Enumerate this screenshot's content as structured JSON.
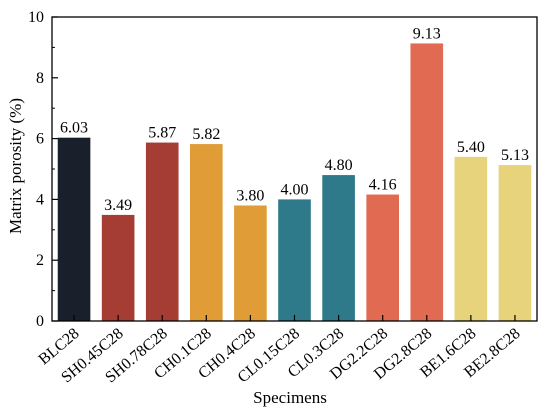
{
  "chart_data": {
    "type": "bar",
    "title": "",
    "xlabel": "Specimens",
    "ylabel": "Matrix porosity (%)",
    "ylim": [
      0,
      10
    ],
    "yticks": [
      0,
      2,
      4,
      6,
      8,
      10
    ],
    "grid": false,
    "categories": [
      "BLC28",
      "SH0.45C28",
      "SH0.78C28",
      "CH0.1C28",
      "CH0.4C28",
      "CL0.15C28",
      "CL0.3C28",
      "DG2.2C28",
      "DG2.8C28",
      "BE1.6C28",
      "BE2.8C28"
    ],
    "values": [
      6.03,
      3.49,
      5.87,
      5.82,
      3.8,
      4.0,
      4.8,
      4.16,
      9.13,
      5.4,
      5.13
    ],
    "value_labels": [
      "6.03",
      "3.49",
      "5.87",
      "5.82",
      "3.80",
      "4.00",
      "4.80",
      "4.16",
      "9.13",
      "5.40",
      "5.13"
    ],
    "colors": [
      "#19202c",
      "#a63d34",
      "#a63d34",
      "#df9c37",
      "#df9c37",
      "#2e7a8a",
      "#2e7a8a",
      "#e06b52",
      "#e06b52",
      "#e6d37b",
      "#e6d37b"
    ]
  }
}
